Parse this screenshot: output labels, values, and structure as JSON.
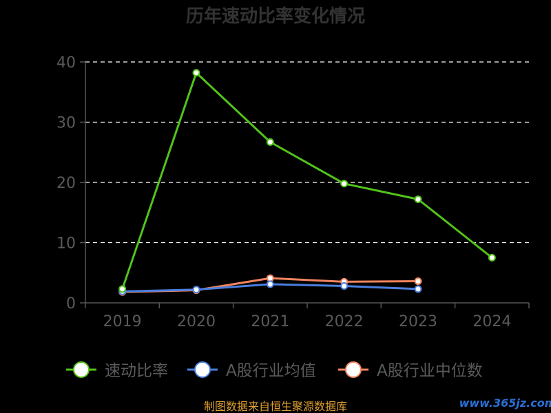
{
  "chart_data": {
    "type": "line",
    "title": "历年速动比率变化情况",
    "categories": [
      "2019",
      "2020",
      "2021",
      "2022",
      "2023",
      "2024"
    ],
    "ylim": [
      0,
      40
    ],
    "yticks": [
      "0",
      "10",
      "20",
      "30",
      "40"
    ],
    "grid": "horizontal-dashed",
    "legend_position": "bottom",
    "series": [
      {
        "name": "速动比率",
        "color": "#52c41a",
        "values": [
          2.3,
          38.2,
          26.7,
          19.8,
          17.2,
          7.5
        ]
      },
      {
        "name": "A股行业均值",
        "color": "#4a7fe0",
        "values": [
          1.9,
          2.2,
          3.1,
          2.8,
          2.3,
          null
        ]
      },
      {
        "name": "A股行业中位数",
        "color": "#f4845f",
        "values": [
          1.8,
          2.1,
          4.1,
          3.5,
          3.6,
          null
        ]
      }
    ]
  },
  "footer": {
    "source": "制图数据来自恒生聚源数据库",
    "watermark": "www.365jz.com"
  }
}
